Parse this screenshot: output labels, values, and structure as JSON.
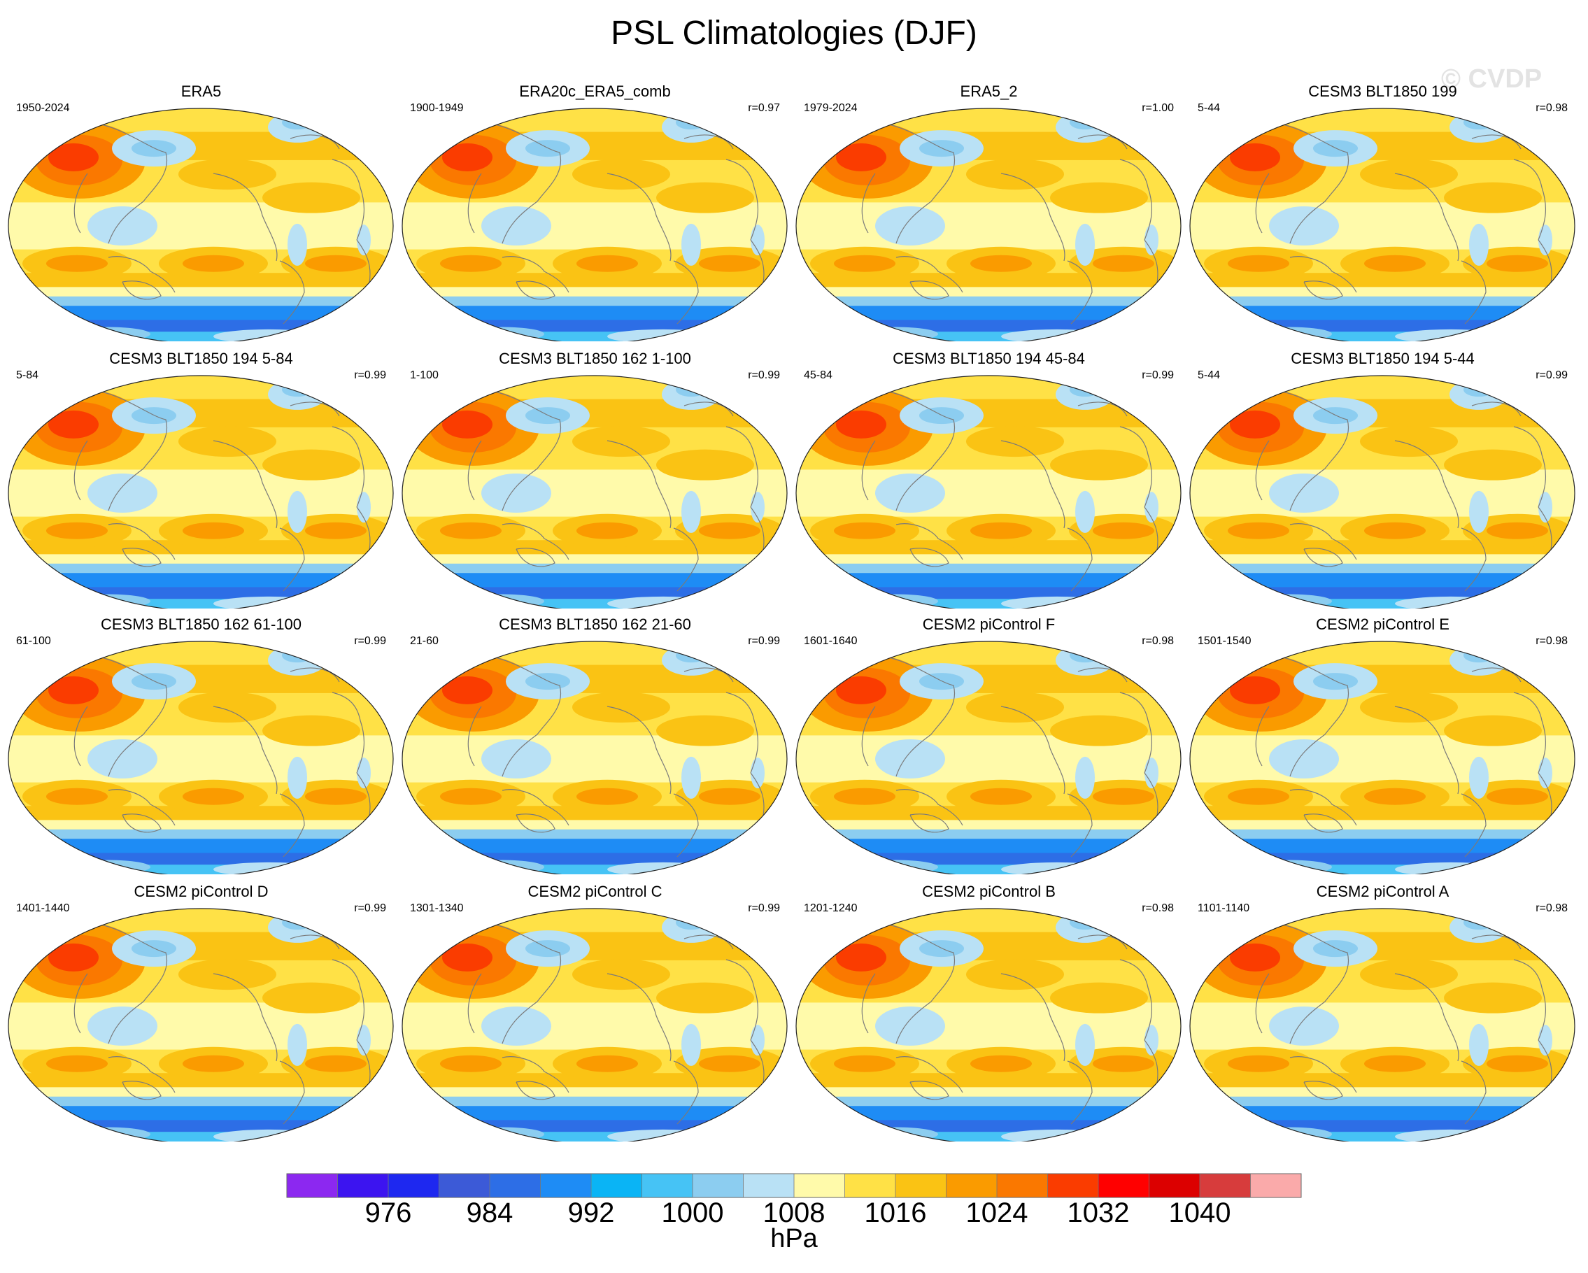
{
  "title": "PSL Climatologies (DJF)",
  "watermark": "© CVDP",
  "chart_data": {
    "type": "heatmap",
    "title": "PSL Climatologies (DJF)",
    "layout": "4x4 grid of global map panels",
    "panels": [
      {
        "title": "ERA5",
        "years": "1950-2024",
        "r": ""
      },
      {
        "title": "ERA20c_ERA5_comb",
        "years": "1900-1949",
        "r": "r=0.97"
      },
      {
        "title": "ERA5_2",
        "years": "1979-2024",
        "r": "r=1.00"
      },
      {
        "title": "CESM3 BLT1850 199",
        "years": "5-44",
        "r": "r=0.98"
      },
      {
        "title": "CESM3 BLT1850 194 5-84",
        "years": "5-84",
        "r": "r=0.99"
      },
      {
        "title": "CESM3 BLT1850 162 1-100",
        "years": "1-100",
        "r": "r=0.99"
      },
      {
        "title": "CESM3 BLT1850 194 45-84",
        "years": "45-84",
        "r": "r=0.99"
      },
      {
        "title": "CESM3 BLT1850 194 5-44",
        "years": "5-44",
        "r": "r=0.99"
      },
      {
        "title": "CESM3 BLT1850 162 61-100",
        "years": "61-100",
        "r": "r=0.99"
      },
      {
        "title": "CESM3 BLT1850 162 21-60",
        "years": "21-60",
        "r": "r=0.99"
      },
      {
        "title": "CESM2 piControl F",
        "years": "1601-1640",
        "r": "r=0.98"
      },
      {
        "title": "CESM2 piControl E",
        "years": "1501-1540",
        "r": "r=0.98"
      },
      {
        "title": "CESM2 piControl D",
        "years": "1401-1440",
        "r": "r=0.99"
      },
      {
        "title": "CESM2 piControl C",
        "years": "1301-1340",
        "r": "r=0.99"
      },
      {
        "title": "CESM2 piControl B",
        "years": "1201-1240",
        "r": "r=0.98"
      },
      {
        "title": "CESM2 piControl A",
        "years": "1101-1140",
        "r": "r=0.98"
      }
    ],
    "colorbar": {
      "units": "hPa",
      "tick_labels": [
        "976",
        "984",
        "992",
        "1000",
        "1008",
        "1016",
        "1024",
        "1032",
        "1040"
      ],
      "tick_values": [
        976,
        984,
        992,
        1000,
        1008,
        1016,
        1024,
        1032,
        1040
      ],
      "levels": [
        972,
        976,
        980,
        984,
        988,
        992,
        996,
        1000,
        1004,
        1008,
        1012,
        1016,
        1020,
        1024,
        1028,
        1032,
        1036,
        1040,
        1044,
        1048
      ],
      "colors": [
        "#8c28f0",
        "#3c14f0",
        "#1e28f0",
        "#3c5ad7",
        "#2d6ee6",
        "#1e8cf5",
        "#0ab4f5",
        "#46c3f5",
        "#8ccdf0",
        "#b9e1f5",
        "#fffaaa",
        "#ffe146",
        "#fac314",
        "#fa9b00",
        "#fa7800",
        "#fa3c00",
        "#ff0000",
        "#dc0000",
        "#d73c3c",
        "#faaaaa"
      ]
    }
  }
}
